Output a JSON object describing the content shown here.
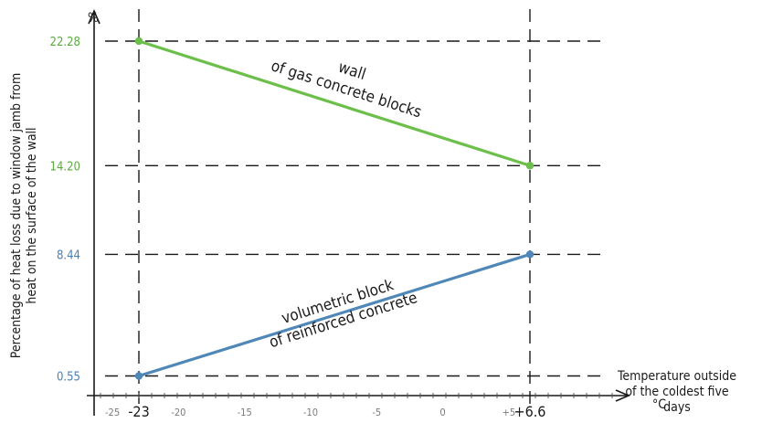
{
  "chart_data": {
    "type": "line",
    "y_unit": "%",
    "ylabel": [
      "Percentage of heat loss due to window jamb from",
      "heat on the surface of the wall"
    ],
    "xlabel": [
      "Temperature outside",
      "of the coldest five",
      "days"
    ],
    "x_unit": "°C",
    "x_ticks": [
      {
        "value": -25,
        "label": "-25",
        "major": false
      },
      {
        "value": -23,
        "label": "-23",
        "major": true
      },
      {
        "value": -20,
        "label": "-20",
        "major": false
      },
      {
        "value": -15,
        "label": "-15",
        "major": false
      },
      {
        "value": -10,
        "label": "-10",
        "major": false
      },
      {
        "value": -5,
        "label": "-5",
        "major": false
      },
      {
        "value": 0,
        "label": "0",
        "major": false
      },
      {
        "value": 5,
        "label": "+5",
        "major": false
      },
      {
        "value": 6.6,
        "label": "+6.6",
        "major": true
      }
    ],
    "xlim": [
      -26.5,
      12
    ],
    "ylim": [
      0,
      24
    ],
    "y_ticks": [
      {
        "value": 22.28,
        "label": "22.28",
        "color": "#5bab3f"
      },
      {
        "value": 14.2,
        "label": "14.20",
        "color": "#5bab3f"
      },
      {
        "value": 8.44,
        "label": "8.44",
        "color": "#4a7fb5"
      },
      {
        "value": 0.55,
        "label": "0.55",
        "color": "#4a7fb5"
      }
    ],
    "series": [
      {
        "name": "wall of gas concrete blocks",
        "label_lines": [
          "wall",
          "of gas concrete blocks"
        ],
        "color": "#6bbf4a",
        "x": [
          -23,
          6.6
        ],
        "y": [
          22.28,
          14.2
        ]
      },
      {
        "name": "volumetric block of reinforced concrete",
        "label_lines": [
          "volumetric block",
          "of reinforced concrete"
        ],
        "color": "#4f87b8",
        "x": [
          -23,
          6.6
        ],
        "y": [
          0.55,
          8.44
        ]
      }
    ],
    "grid": "dashed lines at marked points"
  }
}
